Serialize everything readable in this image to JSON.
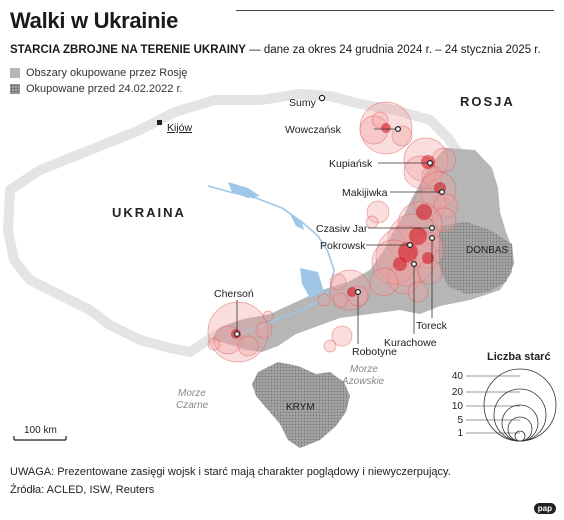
{
  "title": "Walki w Ukrainie",
  "subtitle_bold": "STARCIA ZBROJNE NA TERENIE UKRAINY",
  "subtitle_rest": " — dane za okres 24 grudnia 2024 r. – 24 stycznia 2025 r.",
  "legend": {
    "occupied": "Obszary okupowane przez Rosję",
    "pre2022": "Okupowane przed 24.02.2022 r."
  },
  "labels": {
    "russia": "ROSJA",
    "ukraine": "UKRAINA",
    "donbas": "DONBAS",
    "crimea": "KRYM",
    "black_sea_1": "Morze",
    "black_sea_2": "Czarne",
    "azov_1": "Morze",
    "azov_2": "Azowskie",
    "kyiv": "Kijów"
  },
  "cities": [
    {
      "name": "Sumy"
    },
    {
      "name": "Wowczańsk"
    },
    {
      "name": "Kupiańsk"
    },
    {
      "name": "Makijiwka"
    },
    {
      "name": "Czasiw Jar"
    },
    {
      "name": "Pokrowsk"
    },
    {
      "name": "Toreck"
    },
    {
      "name": "Kurachowe"
    },
    {
      "name": "Robotyne"
    },
    {
      "name": "Chersoń"
    }
  ],
  "scale_label": "100 km",
  "size_legend": {
    "title": "Liczba starć",
    "values": [
      "40",
      "20",
      "10",
      "5",
      "1"
    ]
  },
  "colors": {
    "occupied": "#b6b6b6",
    "land": "#ffffff",
    "conflict_fill": "#f2a0a0",
    "conflict_stroke": "#e06060",
    "conflict_core": "#d0101e"
  },
  "note": "UWAGA: Prezentowane zasięgi wojsk i starć mają charakter poglądowy i niewyczerpujący.",
  "sources": "Źródła: ACLED, ISW, Reuters",
  "brand": "pap"
}
